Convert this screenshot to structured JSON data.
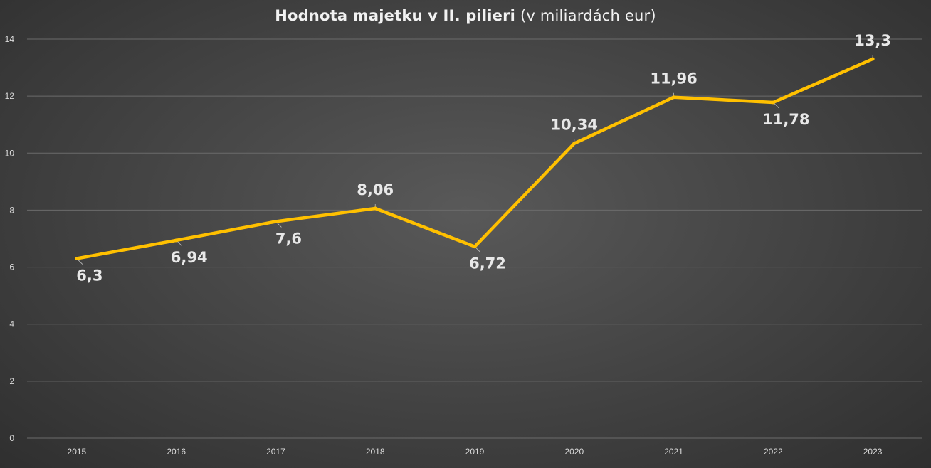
{
  "chart_data": {
    "type": "line",
    "title_bold": "Hodnota majetku v II. pilieri",
    "title_rest": " (v miliardách eur)",
    "categories": [
      "2015",
      "2016",
      "2017",
      "2018",
      "2019",
      "2020",
      "2021",
      "2022",
      "2023"
    ],
    "series": [
      {
        "values": [
          6.3,
          6.94,
          7.6,
          8.06,
          6.72,
          10.34,
          11.96,
          11.78,
          13.3
        ],
        "labels": [
          "6,3",
          "6,94",
          "7,6",
          "8,06",
          "6,72",
          "10,34",
          "11,96",
          "11,78",
          "13,3"
        ],
        "label_positions": [
          "below",
          "below",
          "below",
          "above",
          "below",
          "above",
          "above",
          "below",
          "above"
        ],
        "color": "#FFC000"
      }
    ],
    "ylim": [
      0,
      14
    ],
    "yticks": [
      "0",
      "2",
      "4",
      "6",
      "8",
      "10",
      "12",
      "14"
    ],
    "grid": true,
    "legend": "none",
    "colors": {
      "axis_text": "#d9d9d9",
      "gridline": "#6b6b6b",
      "data_label": "#e8e8e8",
      "leader_line": "#bfbfbf"
    }
  }
}
